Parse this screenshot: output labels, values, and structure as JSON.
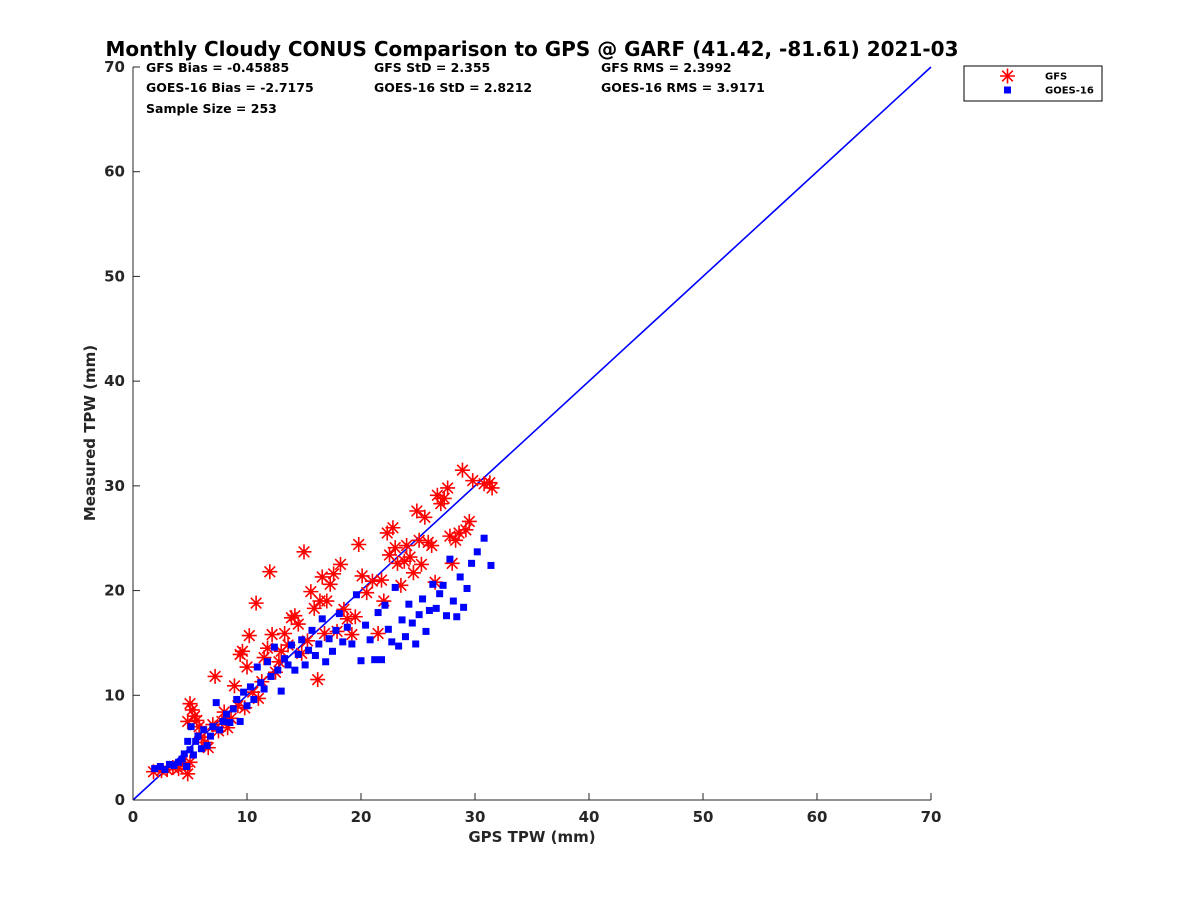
{
  "chart_data": {
    "type": "scatter",
    "title": "Monthly Cloudy CONUS Comparison to GPS @ GARF (41.42, -81.61) 2021-03",
    "xlabel": "GPS TPW (mm)",
    "ylabel": "Measured TPW (mm)",
    "xlim": [
      0,
      70
    ],
    "ylim": [
      0,
      70
    ],
    "xticks": [
      0,
      10,
      20,
      30,
      40,
      50,
      60,
      70
    ],
    "yticks": [
      0,
      10,
      20,
      30,
      40,
      50,
      60,
      70
    ],
    "grid": false,
    "legend_position": "outside-top-right",
    "stats": [
      [
        "GFS Bias = -0.45885",
        "GFS StD = 2.355",
        "GFS RMS = 2.3992"
      ],
      [
        "GOES-16 Bias = -2.7175",
        "GOES-16 StD = 2.8212",
        "GOES-16 RMS = 3.9171"
      ],
      [
        "Sample Size = 253"
      ]
    ],
    "reference_line": {
      "x": [
        0,
        70
      ],
      "y": [
        0,
        70
      ],
      "color": "#0000ff"
    },
    "series": [
      {
        "name": "GFS",
        "marker": "asterisk",
        "color": "#ff0000",
        "points": [
          [
            1.8,
            2.7
          ],
          [
            2.5,
            2.8
          ],
          [
            3.0,
            2.9
          ],
          [
            3.5,
            3.1
          ],
          [
            4.0,
            3.0
          ],
          [
            4.6,
            3.2
          ],
          [
            4.8,
            2.5
          ],
          [
            5.0,
            3.6
          ],
          [
            4.8,
            7.5
          ],
          [
            5.0,
            9.2
          ],
          [
            5.2,
            8.6
          ],
          [
            5.4,
            8.0
          ],
          [
            5.6,
            7.6
          ],
          [
            5.8,
            7.0
          ],
          [
            6.0,
            6.0
          ],
          [
            6.3,
            5.5
          ],
          [
            6.6,
            5.0
          ],
          [
            7.0,
            7.2
          ],
          [
            7.2,
            11.8
          ],
          [
            7.5,
            6.6
          ],
          [
            7.8,
            7.5
          ],
          [
            8.0,
            8.4
          ],
          [
            8.3,
            6.9
          ],
          [
            8.6,
            7.8
          ],
          [
            8.9,
            10.9
          ],
          [
            9.2,
            9.0
          ],
          [
            9.4,
            13.9
          ],
          [
            9.6,
            14.2
          ],
          [
            9.8,
            8.8
          ],
          [
            10.0,
            12.7
          ],
          [
            10.2,
            15.7
          ],
          [
            10.5,
            10.3
          ],
          [
            10.8,
            18.8
          ],
          [
            11.0,
            9.7
          ],
          [
            11.3,
            11.3
          ],
          [
            11.5,
            13.6
          ],
          [
            11.8,
            14.5
          ],
          [
            12.0,
            21.8
          ],
          [
            12.2,
            15.8
          ],
          [
            12.5,
            12.2
          ],
          [
            12.8,
            13.2
          ],
          [
            13.0,
            14.2
          ],
          [
            13.3,
            15.9
          ],
          [
            13.6,
            14.8
          ],
          [
            13.9,
            17.4
          ],
          [
            14.2,
            17.6
          ],
          [
            14.5,
            16.8
          ],
          [
            14.8,
            14.0
          ],
          [
            15.0,
            23.7
          ],
          [
            15.3,
            15.2
          ],
          [
            15.6,
            19.9
          ],
          [
            15.9,
            18.3
          ],
          [
            16.2,
            11.5
          ],
          [
            16.4,
            19.0
          ],
          [
            16.6,
            21.3
          ],
          [
            16.8,
            15.9
          ],
          [
            17.0,
            19.0
          ],
          [
            17.3,
            20.6
          ],
          [
            17.6,
            21.6
          ],
          [
            17.9,
            16.1
          ],
          [
            18.2,
            22.5
          ],
          [
            18.5,
            18.2
          ],
          [
            18.8,
            17.3
          ],
          [
            19.2,
            15.8
          ],
          [
            19.5,
            17.5
          ],
          [
            19.8,
            24.4
          ],
          [
            20.1,
            21.4
          ],
          [
            20.5,
            19.8
          ],
          [
            21.0,
            20.9
          ],
          [
            21.5,
            15.9
          ],
          [
            21.8,
            21.0
          ],
          [
            22.0,
            19.0
          ],
          [
            22.3,
            25.5
          ],
          [
            22.5,
            23.4
          ],
          [
            22.8,
            26.0
          ],
          [
            23.0,
            24.1
          ],
          [
            23.2,
            22.6
          ],
          [
            23.5,
            20.5
          ],
          [
            23.8,
            22.8
          ],
          [
            24.0,
            24.3
          ],
          [
            24.3,
            23.2
          ],
          [
            24.6,
            21.7
          ],
          [
            24.9,
            27.6
          ],
          [
            25.1,
            24.8
          ],
          [
            25.3,
            22.5
          ],
          [
            25.6,
            27.0
          ],
          [
            25.9,
            24.6
          ],
          [
            26.2,
            24.3
          ],
          [
            26.5,
            20.8
          ],
          [
            26.7,
            29.1
          ],
          [
            27.0,
            28.3
          ],
          [
            27.3,
            28.8
          ],
          [
            27.6,
            29.8
          ],
          [
            27.8,
            25.2
          ],
          [
            28.0,
            22.6
          ],
          [
            28.3,
            24.8
          ],
          [
            28.6,
            25.5
          ],
          [
            28.9,
            31.5
          ],
          [
            29.2,
            25.8
          ],
          [
            29.5,
            26.6
          ],
          [
            29.8,
            30.5
          ],
          [
            30.8,
            30.2
          ],
          [
            31.3,
            30.3
          ],
          [
            31.5,
            29.8
          ]
        ]
      },
      {
        "name": "GOES-16",
        "marker": "square",
        "color": "#0000ff",
        "points": [
          [
            1.9,
            3.0
          ],
          [
            2.4,
            3.2
          ],
          [
            2.8,
            2.9
          ],
          [
            3.2,
            3.4
          ],
          [
            3.6,
            3.3
          ],
          [
            4.0,
            3.6
          ],
          [
            4.3,
            3.9
          ],
          [
            4.5,
            4.4
          ],
          [
            4.7,
            3.2
          ],
          [
            4.8,
            5.6
          ],
          [
            5.0,
            4.8
          ],
          [
            5.1,
            7.0
          ],
          [
            5.3,
            4.3
          ],
          [
            5.5,
            5.6
          ],
          [
            5.7,
            6.1
          ],
          [
            6.0,
            4.9
          ],
          [
            6.2,
            6.7
          ],
          [
            6.5,
            5.2
          ],
          [
            6.8,
            6.1
          ],
          [
            7.0,
            7.0
          ],
          [
            7.3,
            9.3
          ],
          [
            7.6,
            6.7
          ],
          [
            7.9,
            7.5
          ],
          [
            8.2,
            8.2
          ],
          [
            8.5,
            7.4
          ],
          [
            8.8,
            8.7
          ],
          [
            9.1,
            9.6
          ],
          [
            9.4,
            7.5
          ],
          [
            9.7,
            10.3
          ],
          [
            10.0,
            9.0
          ],
          [
            10.3,
            10.8
          ],
          [
            10.6,
            9.6
          ],
          [
            10.9,
            12.7
          ],
          [
            11.2,
            11.2
          ],
          [
            11.5,
            10.6
          ],
          [
            11.8,
            13.2
          ],
          [
            12.1,
            11.8
          ],
          [
            12.4,
            14.6
          ],
          [
            12.7,
            12.4
          ],
          [
            13.0,
            10.4
          ],
          [
            13.3,
            13.5
          ],
          [
            13.6,
            12.9
          ],
          [
            13.9,
            14.8
          ],
          [
            14.2,
            12.4
          ],
          [
            14.5,
            13.9
          ],
          [
            14.8,
            15.3
          ],
          [
            15.1,
            12.9
          ],
          [
            15.4,
            14.3
          ],
          [
            15.7,
            16.2
          ],
          [
            16.0,
            13.8
          ],
          [
            16.3,
            14.9
          ],
          [
            16.6,
            17.3
          ],
          [
            16.9,
            13.2
          ],
          [
            17.2,
            15.4
          ],
          [
            17.5,
            14.2
          ],
          [
            17.8,
            16.2
          ],
          [
            18.1,
            17.8
          ],
          [
            18.4,
            15.1
          ],
          [
            18.8,
            16.5
          ],
          [
            19.2,
            14.9
          ],
          [
            19.6,
            19.6
          ],
          [
            20.0,
            13.3
          ],
          [
            20.4,
            16.7
          ],
          [
            20.8,
            15.3
          ],
          [
            21.2,
            13.4
          ],
          [
            21.5,
            17.9
          ],
          [
            21.8,
            13.4
          ],
          [
            22.1,
            18.6
          ],
          [
            22.4,
            16.3
          ],
          [
            22.7,
            15.1
          ],
          [
            23.0,
            20.3
          ],
          [
            23.3,
            14.7
          ],
          [
            23.6,
            17.2
          ],
          [
            23.9,
            15.6
          ],
          [
            24.2,
            18.7
          ],
          [
            24.5,
            16.9
          ],
          [
            24.8,
            14.9
          ],
          [
            25.1,
            17.7
          ],
          [
            25.4,
            19.2
          ],
          [
            25.7,
            16.1
          ],
          [
            26.0,
            18.1
          ],
          [
            26.3,
            20.6
          ],
          [
            26.6,
            18.3
          ],
          [
            26.9,
            19.7
          ],
          [
            27.2,
            20.5
          ],
          [
            27.5,
            17.6
          ],
          [
            27.8,
            23.0
          ],
          [
            28.1,
            19.0
          ],
          [
            28.4,
            17.5
          ],
          [
            28.7,
            21.3
          ],
          [
            29.0,
            18.4
          ],
          [
            29.3,
            20.2
          ],
          [
            29.7,
            22.6
          ],
          [
            30.2,
            23.7
          ],
          [
            30.8,
            25.0
          ],
          [
            31.4,
            22.4
          ]
        ]
      }
    ]
  }
}
